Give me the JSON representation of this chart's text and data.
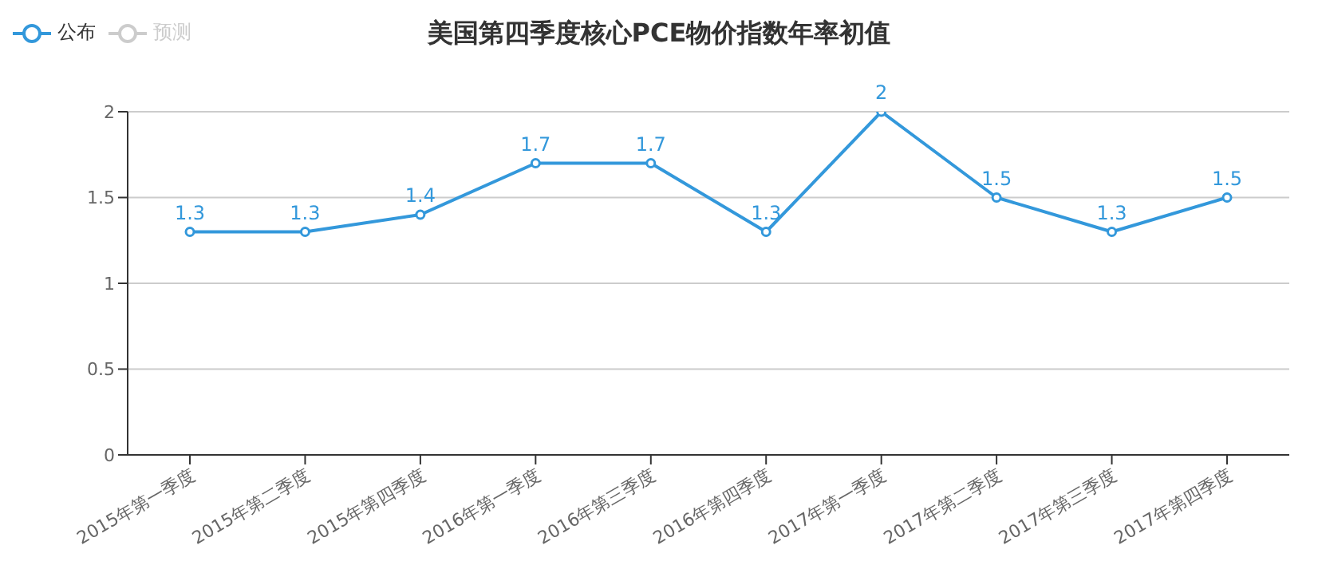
{
  "chart_data": {
    "type": "line",
    "title": "美国第四季度核心PCE物价指数年率初值",
    "categories": [
      "2015年第一季度",
      "2015年第二季度",
      "2015年第四季度",
      "2016年第一季度",
      "2016年第三季度",
      "2016年第四季度",
      "2017年第一季度",
      "2017年第二季度",
      "2017年第三季度",
      "2017年第四季度"
    ],
    "series": [
      {
        "name": "公布",
        "color": "#3398db",
        "values": [
          1.3,
          1.3,
          1.4,
          1.7,
          1.7,
          1.3,
          2,
          1.5,
          1.3,
          1.5
        ]
      },
      {
        "name": "预测",
        "color": "#cccccc",
        "values": [
          null,
          null,
          null,
          null,
          null,
          null,
          null,
          null,
          null,
          null
        ]
      }
    ],
    "ylim": [
      0,
      2
    ],
    "yticks": [
      0,
      0.5,
      1,
      1.5,
      2
    ],
    "grid": "y",
    "legend": "top left",
    "marker": "circle",
    "line_style": "solid",
    "data_labels": true
  }
}
